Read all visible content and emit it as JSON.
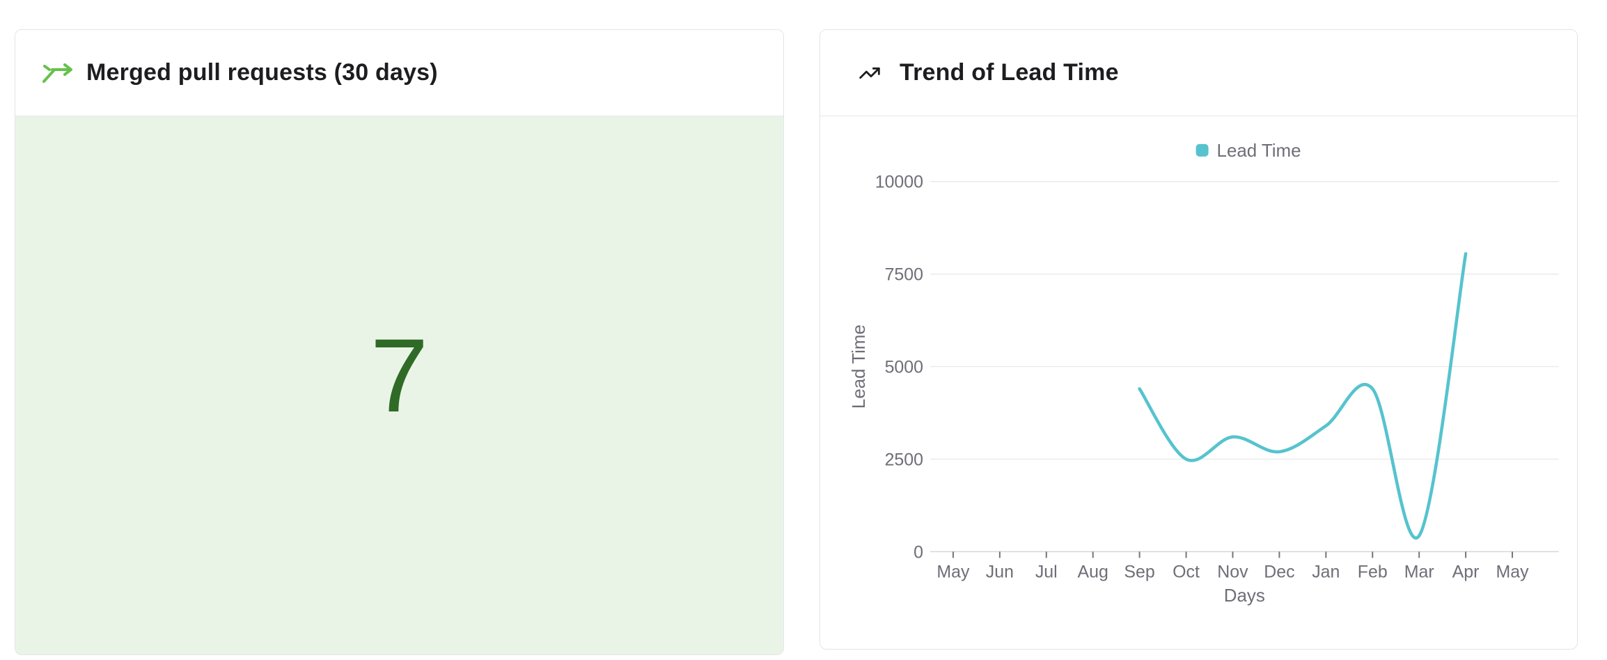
{
  "left_card": {
    "title": "Merged pull requests (30 days)",
    "value": "7",
    "value_color": "#2f6b27",
    "body_bg": "#e9f4e7",
    "icon": "git-merge-arrow-icon",
    "icon_color": "#65c24b"
  },
  "right_card": {
    "title": "Trend of Lead Time",
    "icon": "trending-up-icon",
    "icon_color": "#1d1d20"
  },
  "chart_data": {
    "type": "line",
    "title": "Trend of Lead Time",
    "xlabel": "Days",
    "ylabel": "Lead Time",
    "categories": [
      "May",
      "Jun",
      "Jul",
      "Aug",
      "Sep",
      "Oct",
      "Nov",
      "Dec",
      "Jan",
      "Feb",
      "Mar",
      "Apr",
      "May"
    ],
    "series": [
      {
        "name": "Lead Time",
        "color": "#56c3ce",
        "values": [
          null,
          null,
          null,
          null,
          4400,
          2500,
          3100,
          2700,
          3400,
          4400,
          430,
          8050,
          null
        ]
      }
    ],
    "ylim": [
      0,
      10000
    ],
    "yticks": [
      0,
      2500,
      5000,
      7500,
      10000
    ],
    "grid": true,
    "smooth": true,
    "legend": {
      "items": [
        "Lead Time"
      ],
      "position": "top-center"
    },
    "colors": {
      "gridline": "#e9e9eb",
      "axis_line": "#d8d8dc",
      "tick_mark": "#74747c",
      "label_text": "#6e6e78"
    }
  }
}
